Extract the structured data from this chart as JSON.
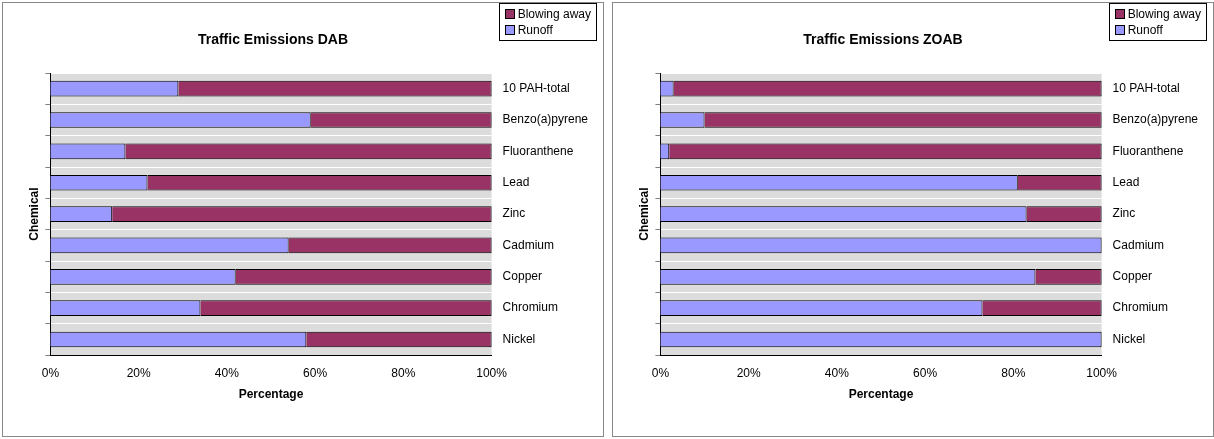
{
  "chart_data": [
    {
      "type": "bar",
      "title": "Traffic Emissions DAB",
      "xlabel": "Percentage",
      "ylabel": "Chemical",
      "orientation": "horizontal",
      "stacked": true,
      "legend": "top right",
      "grid": "y",
      "categories": [
        "10 PAH-total",
        "Benzo(a)pyrene",
        "Fluoranthene",
        "Lead",
        "Zinc",
        "Cadmium",
        "Copper",
        "Chromium",
        "Nickel"
      ],
      "series": [
        {
          "name": "Runoff",
          "color": "#9999ff",
          "values": [
            29,
            59,
            17,
            22,
            14,
            54,
            42,
            34,
            58
          ]
        },
        {
          "name": "Blowing away",
          "color": "#993366",
          "values": [
            71,
            41,
            83,
            78,
            86,
            46,
            58,
            66,
            42
          ]
        }
      ],
      "xlim": [
        0,
        100
      ],
      "xticks": [
        {
          "value": 0,
          "label": "0%"
        },
        {
          "value": 20,
          "label": "20%"
        },
        {
          "value": 40,
          "label": "40%"
        },
        {
          "value": 60,
          "label": "60%"
        },
        {
          "value": 80,
          "label": "80%"
        },
        {
          "value": 100,
          "label": "100%"
        }
      ]
    },
    {
      "type": "bar",
      "title": "Traffic Emissions ZOAB",
      "xlabel": "Percentage",
      "ylabel": "Chemical",
      "orientation": "horizontal",
      "stacked": true,
      "legend": "top right",
      "grid": "y",
      "categories": [
        "10 PAH-total",
        "Benzo(a)pyrene",
        "Fluoranthene",
        "Lead",
        "Zinc",
        "Cadmium",
        "Copper",
        "Chromium",
        "Nickel"
      ],
      "series": [
        {
          "name": "Runoff",
          "color": "#9999ff",
          "values": [
            3,
            10,
            2,
            81,
            83,
            100,
            85,
            73,
            100
          ]
        },
        {
          "name": "Blowing away",
          "color": "#993366",
          "values": [
            97,
            90,
            98,
            19,
            17,
            0,
            15,
            27,
            0
          ]
        }
      ],
      "xlim": [
        0,
        100
      ],
      "xticks": [
        {
          "value": 0,
          "label": "0%"
        },
        {
          "value": 20,
          "label": "20%"
        },
        {
          "value": 40,
          "label": "40%"
        },
        {
          "value": 60,
          "label": "60%"
        },
        {
          "value": 80,
          "label": "80%"
        },
        {
          "value": 100,
          "label": "100%"
        }
      ]
    }
  ]
}
